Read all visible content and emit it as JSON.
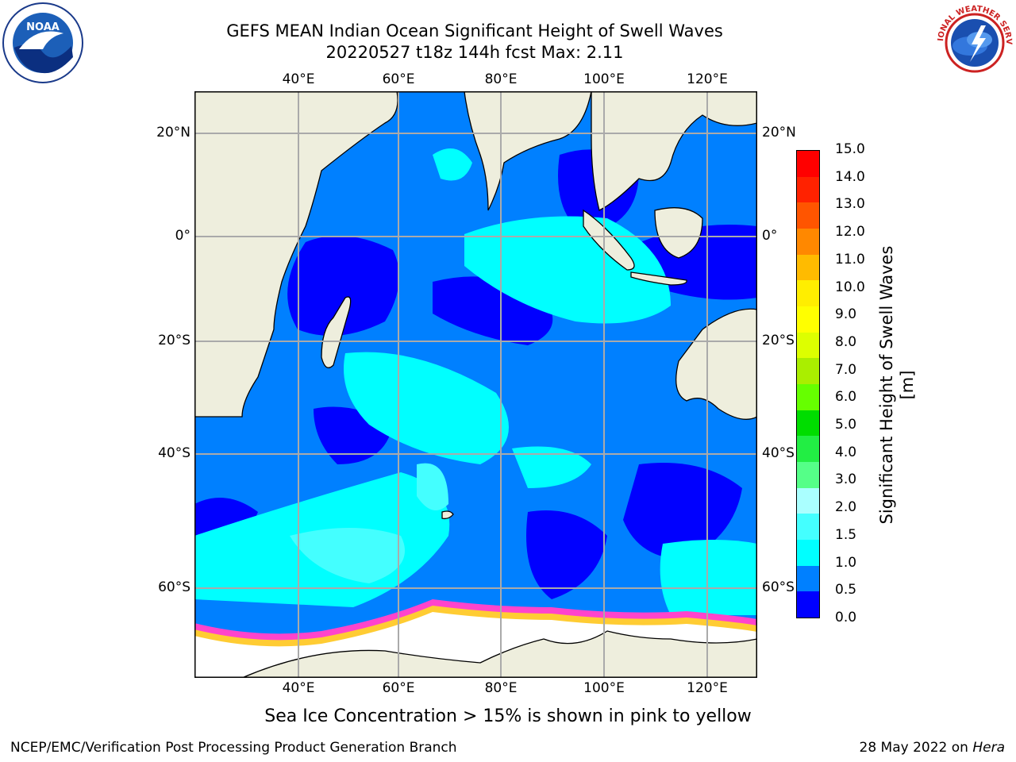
{
  "title_line1": "GEFS MEAN Indian Ocean Significant Height of Swell Waves",
  "title_line2": "20220527 t18z 144h fcst   Max: 2.11",
  "lon_ticks": [
    "40°E",
    "60°E",
    "80°E",
    "100°E",
    "120°E"
  ],
  "lat_ticks": [
    "20°N",
    "0°",
    "20°S",
    "40°S",
    "60°S"
  ],
  "colorbar": {
    "title": "Significant Height of Swell Waves [m]",
    "labels": [
      "15.0",
      "14.0",
      "13.0",
      "12.0",
      "11.0",
      "10.0",
      "9.0",
      "8.0",
      "7.0",
      "6.0",
      "5.0",
      "4.0",
      "3.0",
      "2.0",
      "1.5",
      "1.0",
      "0.5",
      "0.0"
    ],
    "colors": [
      "#0000ff",
      "#0080ff",
      "#00ffff",
      "#44ffff",
      "#aaffff",
      "#55ff88",
      "#22ee44",
      "#00dd00",
      "#66ff00",
      "#aaee00",
      "#ddff00",
      "#ffff00",
      "#ffee00",
      "#ffbb00",
      "#ff8800",
      "#ff5500",
      "#ff2200",
      "#ff0000"
    ]
  },
  "note": "Sea Ice Concentration > 15% is shown in pink to yellow",
  "credit": "NCEP/EMC/Verification Post Processing Product Generation Branch",
  "date": {
    "text": "28 May 2022 on ",
    "machine": "Hera"
  },
  "logos": {
    "noaa": "NOAA",
    "nws": "NATIONAL WEATHER SERVICE"
  },
  "colors": {
    "land": "#eeeedd",
    "ice": "#ffffff",
    "ice_edge": "#ff44cc",
    "ice_yellow": "#ffcc33"
  }
}
